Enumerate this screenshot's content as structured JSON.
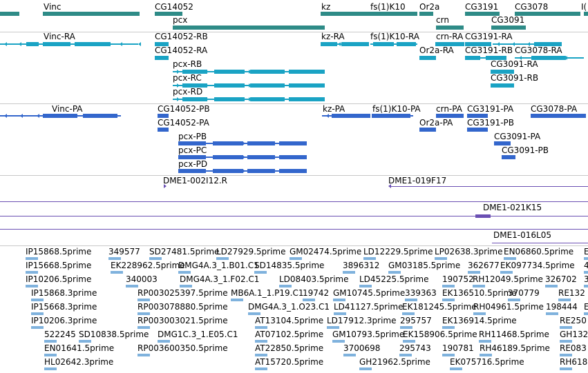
{
  "colors": {
    "gene": "#2e8b87",
    "transcript": "#1aa3c4",
    "protein": "#3366cc",
    "clone": "#6a4fb3",
    "est": "#7fb2dd",
    "separator": "#c8c8c8"
  },
  "tracks": {
    "genes": {
      "labels": [
        "Vinc",
        "CG14052",
        "kz",
        "fs(1)K10",
        "Or2a",
        "CG3191",
        "CG3078",
        "I(",
        "pcx",
        "crn",
        "CG3091"
      ]
    },
    "transcripts": {
      "labels": [
        "Vinc-RA",
        "CG14052-RB",
        "kz-RA",
        "fs(1)K10-RA",
        "crn-RA",
        "CG3191-RA",
        "CG14052-RA",
        "Or2a-RA",
        "CG3191-RB",
        "CG3078-RA",
        "pcx-RB",
        "CG3091-RA",
        "pcx-RC",
        "CG3091-RB",
        "pcx-RD"
      ]
    },
    "proteins": {
      "labels": [
        "Vinc-PA",
        "CG14052-PB",
        "kz-PA",
        "fs(1)K10-PA",
        "crn-PA",
        "CG3191-PA",
        "CG3078-PA",
        "CG14052-PA",
        "Or2a-PA",
        "CG3191-PB",
        "pcx-PB",
        "CG3091-PA",
        "pcx-PC",
        "CG3091-PB",
        "pcx-PD"
      ]
    },
    "clones": {
      "labels": [
        "DME1-002I12.R",
        "DME1-019F17",
        "DME1-021K15",
        "DME1-016L05"
      ]
    },
    "ests": {
      "rows": [
        [
          "IP15868.5prime",
          "349577",
          "SD27481.5prime",
          "LD27929.5prime",
          "GM02474.5prime",
          "LD12229.5prime",
          "LP02638.3prime",
          "EN06860.5prime",
          "E"
        ],
        [
          "IP15668.5prime",
          "EK228962.5prime",
          "DMG4A.3_1.B01.C1",
          "SD14835.5prime",
          "3896312",
          "GM03185.5prime",
          "362677",
          "EK097734.5prime",
          "4"
        ],
        [
          "IP10206.5prime",
          "340003",
          "DMG4A.3_1.F02.C1",
          "LD08403.5prime",
          "LD45225.5prime",
          "190752",
          "RH12049.5prime",
          "326702",
          "3"
        ],
        [
          "IP15868.3prime",
          "RP003025397.5prime",
          "MB6A.1_1.P19.C1",
          "19742",
          "GM10745.5prime",
          "339363",
          "EK136510.5prime",
          "370779",
          "RE132"
        ],
        [
          "IP15668.3prime",
          "RP003078880.5prime",
          "DMG4A.3_1.O23.C1",
          "LD41127.5prime",
          "EK181245.5prime",
          "RH04961.5prime",
          "198444",
          "E"
        ],
        [
          "IP10206.3prime",
          "RP003003021.5prime",
          "AT13104.5prime",
          "LD17912.3prime",
          "295757",
          "EK136914.5prime",
          "RE250"
        ],
        [
          "522245",
          "SD10838.5prime",
          "DMG1C.3_1.E05.C1",
          "AT07102.5prime",
          "GM10793.5prime",
          "EK158906.5prime",
          "RH11468.5prime",
          "GH132"
        ],
        [
          "EN01641.5prime",
          "RP003600350.5prime",
          "AT22850.5prime",
          "3700698",
          "295743",
          "190781",
          "RH46189.5prime",
          "RE083"
        ],
        [
          "HL02642.3prime",
          "AT15720.5prime",
          "GH21962.5prime",
          "EK075716.5prime",
          "RH618"
        ]
      ]
    }
  }
}
